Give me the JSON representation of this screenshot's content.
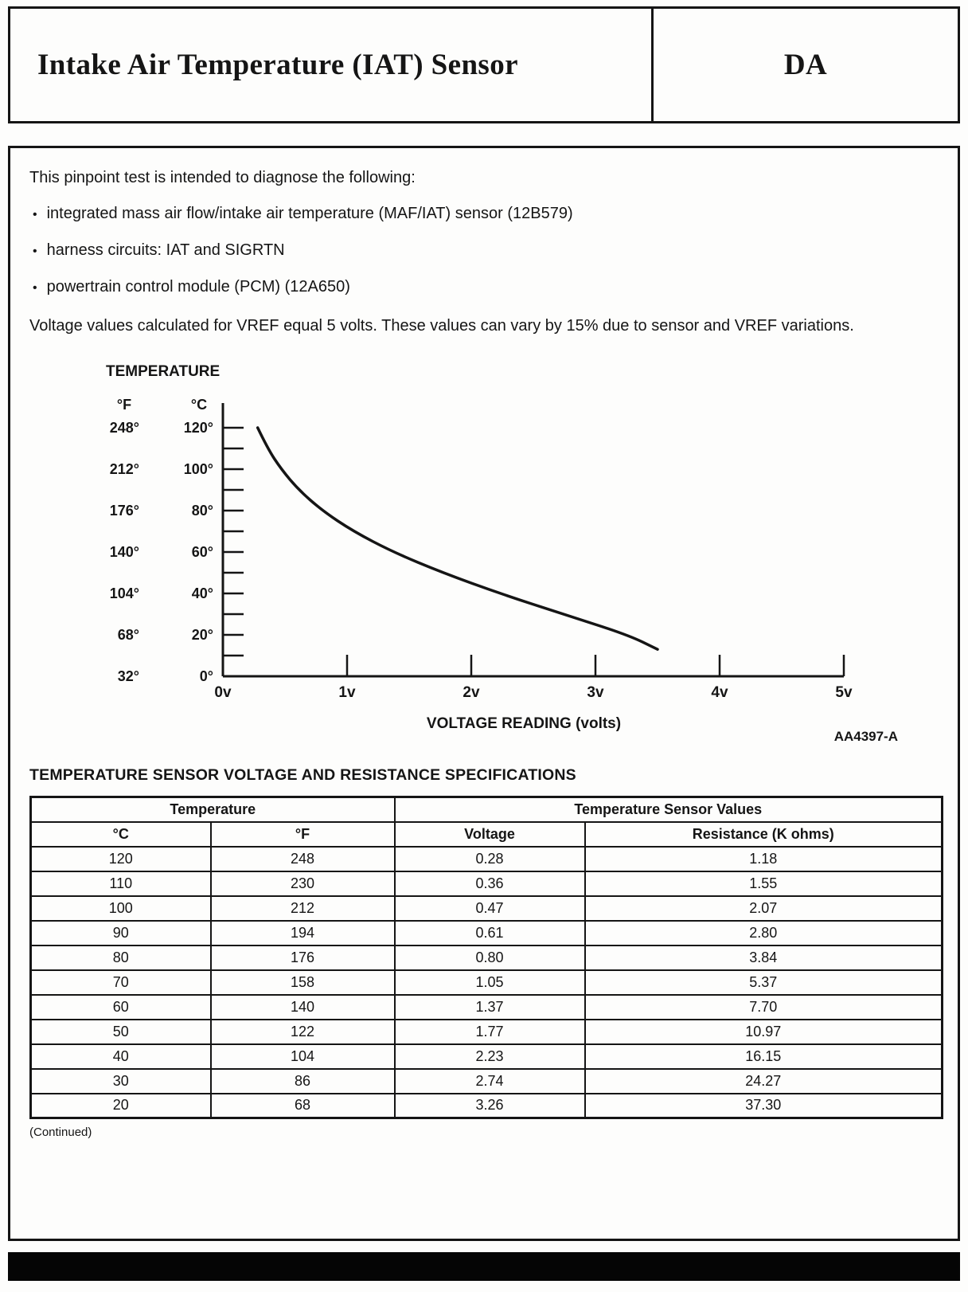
{
  "page": {
    "header": {
      "title": "Intake Air Temperature (IAT) Sensor",
      "code": "DA"
    },
    "intro": "This pinpoint test is intended to diagnose the following:",
    "bullet_char": "•",
    "bullets": [
      "integrated mass air flow/intake air temperature (MAF/IAT) sensor (12B579)",
      "harness circuits: IAT and SIGRTN",
      "powertrain control module (PCM) (12A650)"
    ],
    "note": "Voltage values calculated for VREF equal 5 volts. These values can vary by 15% due to sensor and VREF variations.",
    "figure_ref": "AA4397-A",
    "continued": "(Continued)"
  },
  "chart_data": {
    "type": "line",
    "title": "TEMPERATURE",
    "xlabel": "VOLTAGE READING (volts)",
    "xlim": [
      0,
      5
    ],
    "ylim_c": [
      0,
      120
    ],
    "grid": false,
    "x_ticks": [
      "0v",
      "1v",
      "2v",
      "3v",
      "4v",
      "5v"
    ],
    "y_axis": {
      "f_header": "°F",
      "c_header": "°C",
      "f_labels": [
        "248°",
        "212°",
        "176°",
        "140°",
        "104°",
        "68°",
        "32°"
      ],
      "c_labels": [
        "120°",
        "100°",
        "80°",
        "60°",
        "40°",
        "20°",
        "0°"
      ]
    },
    "curve": {
      "x_volts": [
        0.28,
        0.36,
        0.47,
        0.61,
        0.8,
        1.05,
        1.37,
        1.77,
        2.23,
        2.74,
        3.26,
        3.5
      ],
      "y_celsius": [
        120,
        110,
        100,
        90,
        80,
        70,
        60,
        50,
        40,
        30,
        20,
        13
      ]
    }
  },
  "table": {
    "section_title": "TEMPERATURE SENSOR VOLTAGE AND RESISTANCE SPECIFICATIONS",
    "group_headers": [
      "Temperature",
      "Temperature Sensor Values"
    ],
    "columns": [
      "°C",
      "°F",
      "Voltage",
      "Resistance (K ohms)"
    ],
    "rows": [
      [
        "120",
        "248",
        "0.28",
        "1.18"
      ],
      [
        "110",
        "230",
        "0.36",
        "1.55"
      ],
      [
        "100",
        "212",
        "0.47",
        "2.07"
      ],
      [
        "90",
        "194",
        "0.61",
        "2.80"
      ],
      [
        "80",
        "176",
        "0.80",
        "3.84"
      ],
      [
        "70",
        "158",
        "1.05",
        "5.37"
      ],
      [
        "60",
        "140",
        "1.37",
        "7.70"
      ],
      [
        "50",
        "122",
        "1.77",
        "10.97"
      ],
      [
        "40",
        "104",
        "2.23",
        "16.15"
      ],
      [
        "30",
        "86",
        "2.74",
        "24.27"
      ],
      [
        "20",
        "68",
        "3.26",
        "37.30"
      ]
    ]
  }
}
